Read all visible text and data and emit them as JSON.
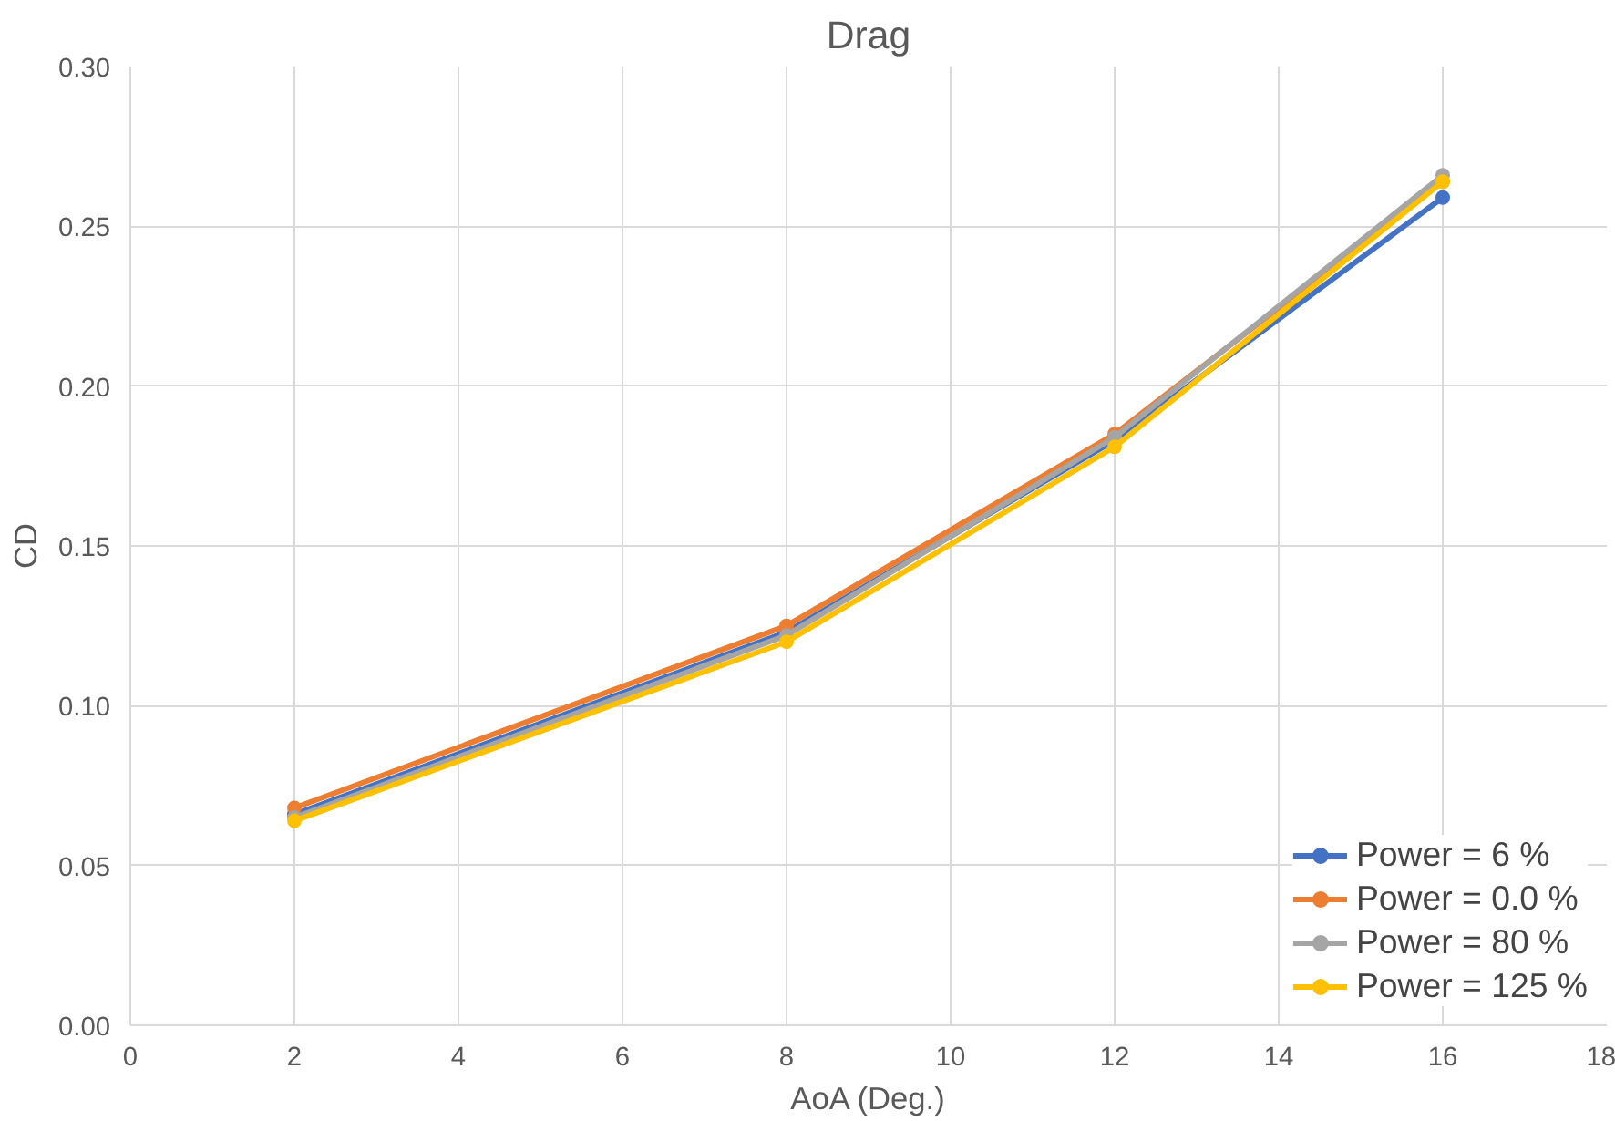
{
  "chart_data": {
    "type": "line",
    "title": "Drag",
    "xlabel": "AoA (Deg.)",
    "ylabel": "CD",
    "x": [
      2,
      8,
      12,
      16
    ],
    "series": [
      {
        "name": "Power = 6 %",
        "color": "#4472c4",
        "values": [
          0.066,
          0.123,
          0.183,
          0.259
        ]
      },
      {
        "name": "Power = 0.0 %",
        "color": "#ed7d31",
        "values": [
          0.068,
          0.125,
          0.185,
          0.264
        ]
      },
      {
        "name": "Power = 80 %",
        "color": "#a5a5a5",
        "values": [
          0.065,
          0.122,
          0.184,
          0.266
        ]
      },
      {
        "name": "Power = 125 %",
        "color": "#ffc000",
        "values": [
          0.064,
          0.12,
          0.181,
          0.264
        ]
      }
    ],
    "xlim": [
      0,
      18
    ],
    "xticks": [
      0,
      2,
      4,
      6,
      8,
      10,
      12,
      14,
      16,
      18
    ],
    "ylim": [
      0,
      0.3
    ],
    "yticks": [
      {
        "value": 0,
        "label": "0.00"
      },
      {
        "value": 0.05,
        "label": "0.05"
      },
      {
        "value": 0.1,
        "label": "0.10"
      },
      {
        "value": 0.15,
        "label": "0.15"
      },
      {
        "value": 0.2,
        "label": "0.20"
      },
      {
        "value": 0.25,
        "label": "0.25"
      },
      {
        "value": 0.3,
        "label": "0.30"
      }
    ],
    "grid": true,
    "legend": "bottom right",
    "marker": "circle",
    "line_style": "solid"
  }
}
